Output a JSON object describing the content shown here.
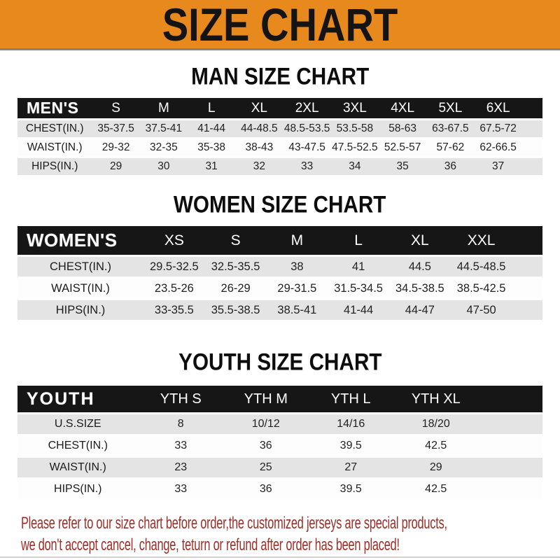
{
  "banner": {
    "title": "SIZE CHART"
  },
  "colors": {
    "banner_orange": "#E8891E",
    "bar_black": "#161616",
    "row_gray": "#E4E4E4",
    "note_red": "#A02E26"
  },
  "sections": [
    {
      "id": "men",
      "title": "MAN SIZE CHART",
      "corner_label": "MEN'S",
      "columns": [
        "S",
        "M",
        "L",
        "XL",
        "2XL",
        "3XL",
        "4XL",
        "5XL",
        "6XL"
      ],
      "rows": [
        {
          "label": "CHEST(IN.)",
          "values": [
            "35-37.5",
            "37.5-41",
            "41-44",
            "44-48.5",
            "48.5-53.5",
            "53.5-58",
            "58-63",
            "63-67.5",
            "67.5-72"
          ]
        },
        {
          "label": "WAIST(IN.)",
          "values": [
            "29-32",
            "32-35",
            "35-38",
            "38-43",
            "43-47.5",
            "47.5-52.5",
            "52.5-57",
            "57-62",
            "62-66.5"
          ]
        },
        {
          "label": "HIPS(IN.)",
          "values": [
            "29",
            "30",
            "31",
            "32",
            "33",
            "34",
            "35",
            "36",
            "37"
          ]
        }
      ]
    },
    {
      "id": "women",
      "title": "WOMEN SIZE CHART",
      "corner_label": "WOMEN'S",
      "columns": [
        "XS",
        "S",
        "M",
        "L",
        "XL",
        "XXL"
      ],
      "rows": [
        {
          "label": "CHEST(IN.)",
          "values": [
            "29.5-32.5",
            "32.5-35.5",
            "38",
            "41",
            "44.5",
            "44.5-48.5"
          ]
        },
        {
          "label": "WAIST(IN.)",
          "values": [
            "23.5-26",
            "26-29",
            "29-31.5",
            "31.5-34.5",
            "34.5-38.5",
            "38.5-42.5"
          ]
        },
        {
          "label": "HIPS(IN.)",
          "values": [
            "33-35.5",
            "35.5-38.5",
            "38.5-41",
            "41-44",
            "44-47",
            "47-50"
          ]
        }
      ]
    },
    {
      "id": "youth",
      "title": "YOUTH SIZE CHART",
      "corner_label": "YOUTH",
      "columns": [
        "YTH S",
        "YTH M",
        "YTH L",
        "YTH XL"
      ],
      "rows": [
        {
          "label": "U.S.SIZE",
          "values": [
            "8",
            "10/12",
            "14/16",
            "18/20"
          ]
        },
        {
          "label": "CHEST(IN.)",
          "values": [
            "33",
            "36",
            "39.5",
            "42.5"
          ]
        },
        {
          "label": "WAIST(IN.)",
          "values": [
            "23",
            "25",
            "27",
            "29"
          ]
        },
        {
          "label": "HIPS(IN.)",
          "values": [
            "33",
            "36",
            "39.5",
            "42.5"
          ]
        }
      ]
    }
  ],
  "note": {
    "line1": "Please refer to our size chart before order,the customized jerseys are special products,",
    "line2": "we don't accept cancel, change, teturn or refund after order has been placed!"
  }
}
